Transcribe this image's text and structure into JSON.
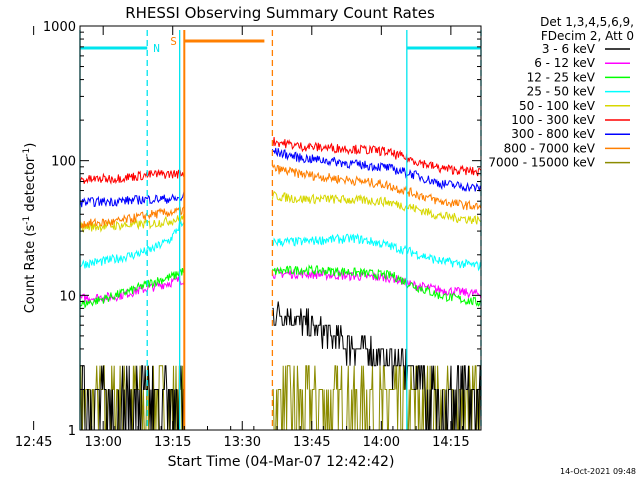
{
  "chart_data": {
    "type": "line",
    "title": "RHESSI Observing Summary Count Rates",
    "xlabel": "Start Time (04-Mar-07 12:42:42)",
    "ylabel_parts": [
      "Count Rate (s",
      "-1",
      " detector",
      "-1",
      ")"
    ],
    "x_ticks": [
      "12:45",
      "13:00",
      "13:15",
      "13:30",
      "13:45",
      "14:00",
      "14:15"
    ],
    "y_ticks": [
      "1",
      "10",
      "100",
      "1000"
    ],
    "y_scale": "log",
    "ylim": [
      1,
      1000
    ],
    "xlim_minutes": [
      12.5,
      99.0
    ],
    "legend_header": [
      "Det 1,3,4,5,6,9,",
      "FDecim 2, Att 0"
    ],
    "timestamp": "14-Oct-2021 09:48",
    "markers": {
      "night_label": "N",
      "saa_label": "S",
      "night_color": "#00e5ee",
      "saa_color": "#ff7f00",
      "night_segments": [
        [
          12.5,
          27.0
        ],
        [
          83.0,
          99.0
        ]
      ],
      "saa_segment": [
        35.0,
        54.0
      ],
      "night_vlines_solid": [
        12.5,
        34.0,
        83.0
      ],
      "night_vlines_dashed": [
        27.0,
        99.0
      ],
      "saa_vlines_solid": [
        35.0
      ],
      "saa_vlines_dashed": [
        54.0
      ]
    },
    "series": [
      {
        "name": "3 - 6 keV",
        "color": "#000000",
        "x": [
          12.5,
          20,
          28,
          34,
          54,
          58,
          64,
          70,
          76,
          80,
          84,
          88,
          92,
          96,
          99
        ],
        "values": [
          1.6,
          1.6,
          1.6,
          1.7,
          7.5,
          7.0,
          5.5,
          4.5,
          3.8,
          3.3,
          2.8,
          2.4,
          2.0,
          1.7,
          1.6
        ]
      },
      {
        "name": "6 - 12 keV",
        "color": "#ff00ff",
        "x": [
          12.5,
          20,
          28,
          34,
          54,
          60,
          70,
          80,
          84,
          90,
          99
        ],
        "values": [
          9.5,
          9.8,
          11.5,
          13.0,
          14.5,
          14.5,
          14.0,
          13.5,
          12.0,
          11.0,
          10.2
        ]
      },
      {
        "name": "12 - 25 keV",
        "color": "#00ff00",
        "x": [
          12.5,
          18,
          24,
          28,
          33,
          34,
          54,
          60,
          70,
          80,
          84,
          90,
          99
        ],
        "values": [
          8.5,
          9.5,
          11.0,
          12.5,
          14.0,
          15.0,
          15.0,
          15.5,
          15.0,
          14.0,
          12.0,
          10.0,
          8.8
        ]
      },
      {
        "name": "25 - 50 keV",
        "color": "#00ffff",
        "x": [
          12.5,
          18,
          24,
          28,
          32,
          34,
          54,
          60,
          66,
          72,
          78,
          84,
          90,
          99
        ],
        "values": [
          17.0,
          18.0,
          20.0,
          22.0,
          26.0,
          33.0,
          25.0,
          25.0,
          26.0,
          26.5,
          24.0,
          21.0,
          18.0,
          16.5
        ]
      },
      {
        "name": "50 - 100 keV",
        "color": "#d7d700",
        "x": [
          12.5,
          20,
          28,
          34,
          54,
          60,
          66,
          72,
          78,
          84,
          90,
          99
        ],
        "values": [
          32.0,
          33.0,
          34.0,
          37.0,
          55.0,
          52.0,
          52.0,
          51.0,
          50.0,
          45.0,
          39.0,
          36.0
        ]
      },
      {
        "name": "100 - 300 keV",
        "color": "#ff0000",
        "x": [
          12.5,
          20,
          28,
          34,
          54,
          60,
          66,
          72,
          78,
          84,
          90,
          99
        ],
        "values": [
          72.0,
          74.0,
          79.0,
          80.0,
          140.0,
          128.0,
          125.0,
          122.0,
          118.0,
          102.0,
          88.0,
          82.0
        ]
      },
      {
        "name": "300 - 800 keV",
        "color": "#0000ff",
        "x": [
          12.5,
          20,
          28,
          34,
          54,
          60,
          66,
          72,
          78,
          84,
          90,
          99
        ],
        "values": [
          49.0,
          50.0,
          52.0,
          52.0,
          118.0,
          105.0,
          100.0,
          94.0,
          90.0,
          80.0,
          68.0,
          62.0
        ]
      },
      {
        "name": "800 - 7000 keV",
        "color": "#ff7f00",
        "x": [
          12.5,
          20,
          28,
          34,
          54,
          60,
          66,
          72,
          78,
          84,
          90,
          99
        ],
        "values": [
          34.0,
          35.0,
          40.0,
          42.0,
          88.0,
          80.0,
          75.0,
          71.0,
          67.0,
          58.0,
          50.0,
          45.0
        ]
      },
      {
        "name": "7000 - 15000 keV",
        "color": "#8b8b00",
        "x": [
          12.5,
          20,
          28,
          34,
          54,
          60,
          66,
          72,
          78,
          84,
          90,
          99
        ],
        "values": [
          1.5,
          1.5,
          1.5,
          1.5,
          1.5,
          1.6,
          1.7,
          1.7,
          1.8,
          1.5,
          1.5,
          1.5
        ]
      }
    ]
  }
}
